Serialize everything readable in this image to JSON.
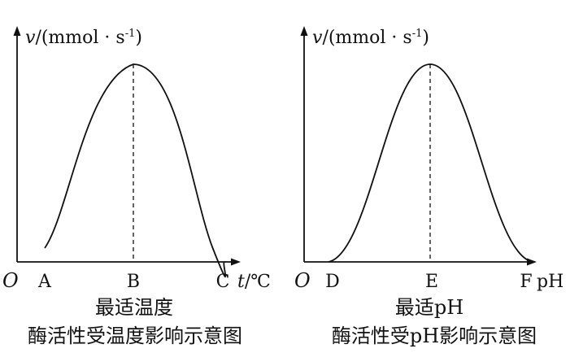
{
  "chart_data": [
    {
      "type": "line",
      "title": "酶活性受温度影响示意图",
      "subtitle": "最适温度",
      "ylabel": {
        "var": "v",
        "unit": "/(mmol · s",
        "sup": "-1",
        "close": ")"
      },
      "xlabel": {
        "var": "t",
        "unit": "/℃"
      },
      "origin": "O",
      "ticks": [
        "A",
        "B",
        "C"
      ],
      "x": [
        "A",
        "B",
        "C"
      ],
      "series": [
        {
          "values": [
            0.07,
            1.0,
            0.0
          ]
        }
      ],
      "peak_at": "B",
      "grid": false
    },
    {
      "type": "line",
      "title": "酶活性受pH影响示意图",
      "subtitle": "最适pH",
      "ylabel": {
        "var": "v",
        "unit": "/(mmol · s",
        "sup": "-1",
        "close": ")"
      },
      "xlabel": {
        "var": "",
        "unit": "pH"
      },
      "origin": "O",
      "ticks": [
        "D",
        "E",
        "F"
      ],
      "x": [
        "D",
        "E",
        "F"
      ],
      "series": [
        {
          "values": [
            0.0,
            1.0,
            0.0
          ]
        }
      ],
      "peak_at": "E",
      "grid": false
    }
  ]
}
